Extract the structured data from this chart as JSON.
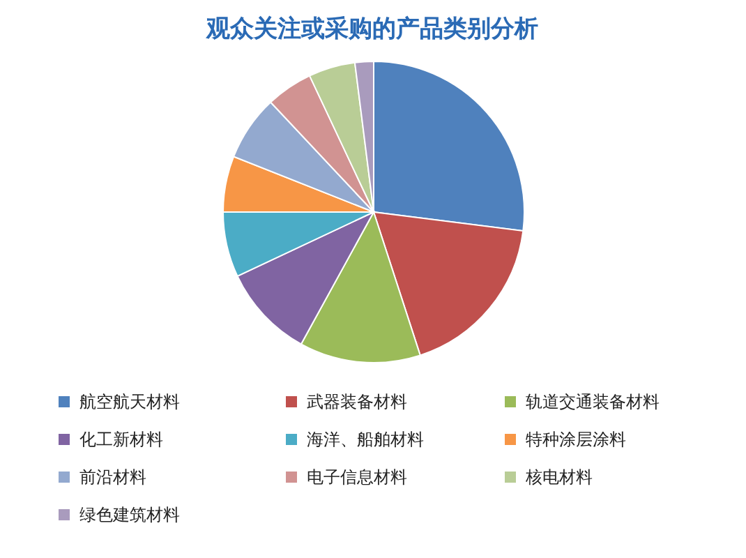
{
  "chart_data": {
    "type": "pie",
    "title": "观众关注或采购的产品类别分析",
    "categories": [
      "航空航天材料",
      "武器装备材料",
      "轨道交通装备材料",
      "化工新材料",
      "海洋、船舶材料",
      "特种涂层涂料",
      "前沿材料",
      "电子信息材料",
      "核电材料",
      "绿色建筑材料"
    ],
    "values": [
      27,
      18,
      13,
      10,
      7,
      6,
      7,
      5,
      5,
      2
    ],
    "colors": [
      "#4f81bd",
      "#c0504d",
      "#9bbb59",
      "#8064a2",
      "#4bacc6",
      "#f79646",
      "#93a9cf",
      "#d19392",
      "#b9cd96",
      "#a99bbd"
    ],
    "legend": "bottom"
  }
}
